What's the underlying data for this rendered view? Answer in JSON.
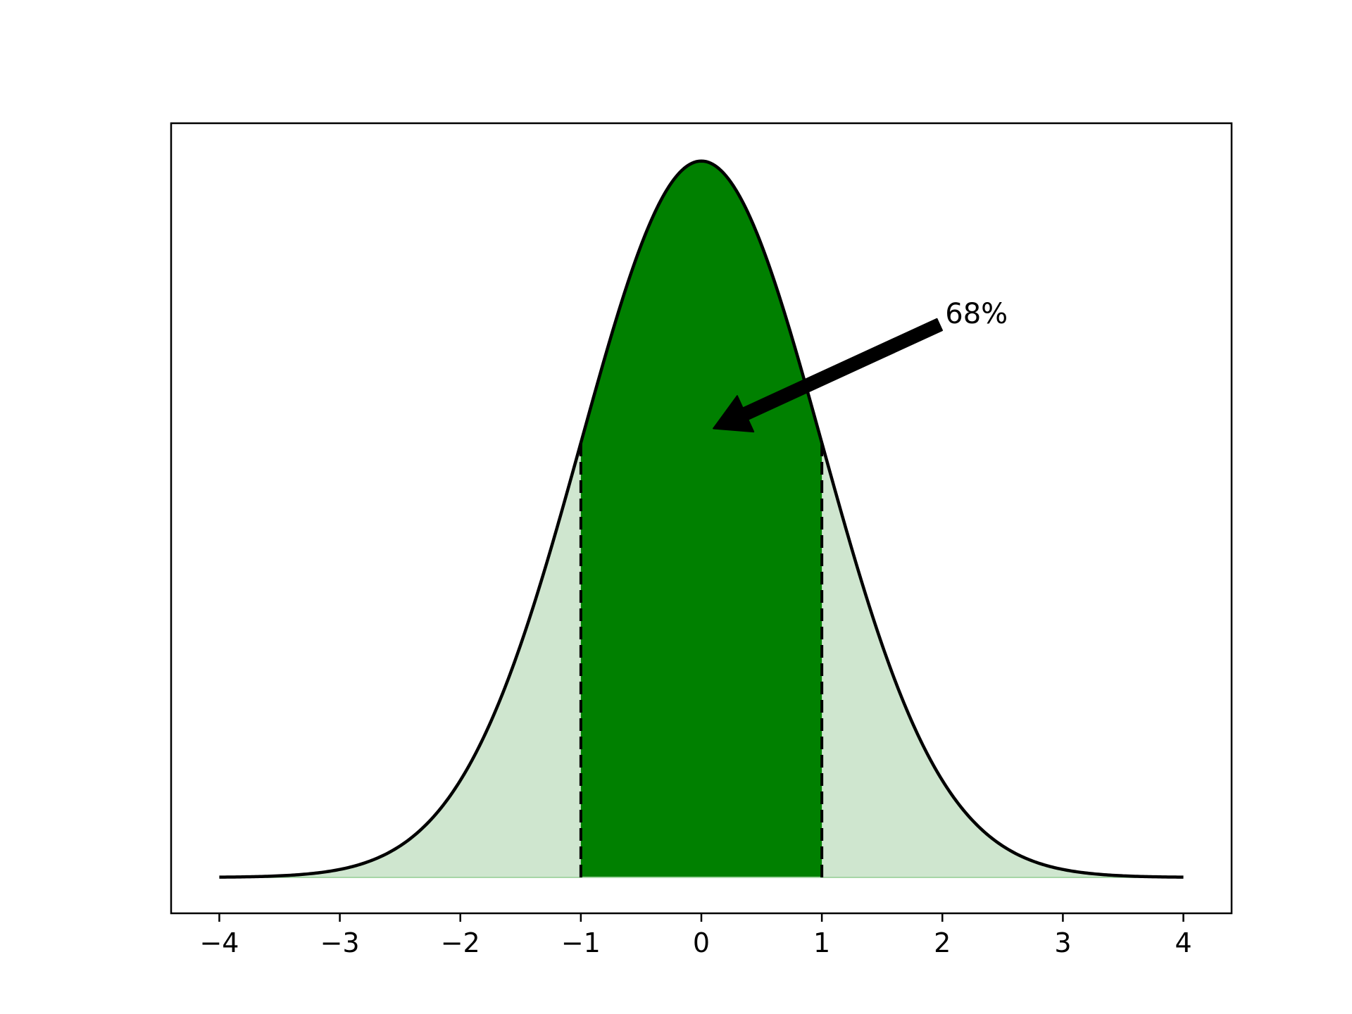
{
  "chart_data": {
    "type": "area",
    "title": "",
    "xlabel": "",
    "ylabel": "",
    "xlim": [
      -4.4,
      4.4
    ],
    "ylim": [
      -0.02,
      0.42
    ],
    "grid": false,
    "x_ticks": [
      -4,
      -3,
      -2,
      -1,
      0,
      1,
      2,
      3,
      4
    ],
    "x_tick_labels": [
      "−4",
      "−3",
      "−2",
      "−1",
      "0",
      "1",
      "2",
      "3",
      "4"
    ],
    "curve": {
      "function": "standard normal pdf",
      "mean": 0,
      "std": 1,
      "x_range": [
        -4,
        4
      ]
    },
    "shaded_regions": [
      {
        "x_range": [
          -4,
          4
        ],
        "color": "#cfe6cf"
      },
      {
        "x_range": [
          -1,
          1
        ],
        "color": "#008000"
      }
    ],
    "vertical_lines": [
      {
        "x": -1
      },
      {
        "x": 1
      }
    ],
    "annotation": {
      "text": "68%",
      "text_xy": [
        2.0,
        0.3
      ],
      "arrow_target_xy": [
        0.1,
        0.25
      ]
    },
    "colors": {
      "curve": "#000000",
      "fill_light": "#cfe6cf",
      "fill_dark": "#008000",
      "baseline": "#a6d6a6"
    }
  }
}
